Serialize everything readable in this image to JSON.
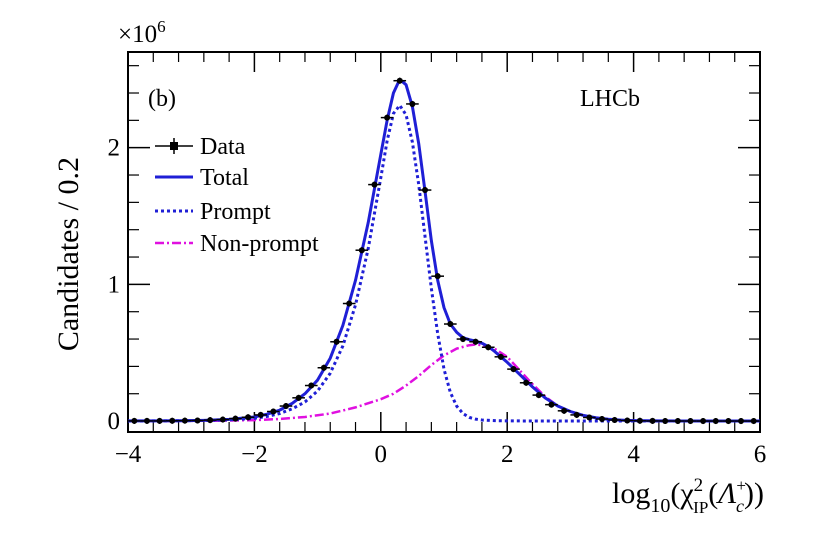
{
  "chart_data": {
    "type": "line",
    "experiment_label": "LHCb",
    "panel_label": "(b)",
    "xlabel": "log₁₀(χ²_IP(Λ_c⁺))",
    "xlabel_parts": {
      "prefix": "log",
      "sub10": "10",
      "paren_open": "(",
      "chi": "χ",
      "sup2": "2",
      "subIP": "IP",
      "paren2": "(",
      "lambda": "Λ",
      "subc": "c",
      "supplus": "+",
      "close": "))"
    },
    "ylabel": "Candidates / 0.2",
    "y_multiplier": "×10",
    "y_multiplier_exp": "6",
    "xlim": [
      -4,
      6
    ],
    "ylim": [
      -0.08,
      2.7
    ],
    "x_ticks": [
      -4,
      -2,
      0,
      2,
      4,
      6
    ],
    "x_tick_labels": [
      "−4",
      "−2",
      "0",
      "2",
      "4",
      "6"
    ],
    "y_ticks": [
      0,
      1,
      2
    ],
    "y_tick_labels": [
      "0",
      "1",
      "2"
    ],
    "bin_width": 0.2,
    "legend": [
      {
        "key": "data",
        "label": "Data"
      },
      {
        "key": "total",
        "label": "Total"
      },
      {
        "key": "prompt",
        "label": "Prompt"
      },
      {
        "key": "nonprompt",
        "label": "Non-prompt"
      }
    ],
    "series": [
      {
        "name": "Data",
        "style": "points",
        "color": "#000000",
        "x": [
          -3.9,
          -3.7,
          -3.5,
          -3.3,
          -3.1,
          -2.9,
          -2.7,
          -2.5,
          -2.3,
          -2.1,
          -1.9,
          -1.7,
          -1.5,
          -1.3,
          -1.1,
          -0.9,
          -0.7,
          -0.5,
          -0.3,
          -0.1,
          0.1,
          0.3,
          0.5,
          0.7,
          0.9,
          1.1,
          1.3,
          1.5,
          1.7,
          1.9,
          2.1,
          2.3,
          2.5,
          2.7,
          2.9,
          3.1,
          3.3,
          3.5,
          3.7,
          3.9,
          4.1,
          4.3,
          4.5,
          4.7,
          4.9,
          5.1,
          5.3,
          5.5,
          5.7,
          5.9
        ],
        "y": [
          0.001,
          0.001,
          0.001,
          0.002,
          0.003,
          0.004,
          0.007,
          0.011,
          0.018,
          0.028,
          0.045,
          0.07,
          0.11,
          0.17,
          0.26,
          0.39,
          0.58,
          0.86,
          1.25,
          1.73,
          2.22,
          2.49,
          2.32,
          1.69,
          1.06,
          0.71,
          0.6,
          0.58,
          0.54,
          0.47,
          0.38,
          0.28,
          0.19,
          0.12,
          0.075,
          0.045,
          0.026,
          0.015,
          0.008,
          0.004,
          0.002,
          0.001,
          0.0006,
          0.0003,
          0.0002,
          0.0001,
          0.0001,
          0.0001,
          0.0001,
          0.0001
        ]
      },
      {
        "name": "Total",
        "style": "solid",
        "color": "#1f1fd6",
        "x": [
          -4.0,
          -3.6,
          -3.2,
          -2.8,
          -2.4,
          -2.0,
          -1.8,
          -1.6,
          -1.4,
          -1.2,
          -1.0,
          -0.8,
          -0.6,
          -0.4,
          -0.2,
          0.0,
          0.1,
          0.2,
          0.3,
          0.4,
          0.5,
          0.6,
          0.7,
          0.8,
          0.9,
          1.0,
          1.1,
          1.2,
          1.3,
          1.4,
          1.5,
          1.6,
          1.7,
          1.8,
          1.9,
          2.0,
          2.2,
          2.4,
          2.6,
          2.8,
          3.0,
          3.2,
          3.4,
          3.6,
          3.8,
          4.0,
          4.4,
          4.8,
          5.2,
          5.6,
          6.0
        ],
        "y": [
          0.001,
          0.001,
          0.002,
          0.005,
          0.012,
          0.03,
          0.05,
          0.08,
          0.13,
          0.2,
          0.3,
          0.46,
          0.7,
          1.03,
          1.45,
          1.95,
          2.2,
          2.4,
          2.5,
          2.46,
          2.3,
          2.03,
          1.68,
          1.32,
          1.03,
          0.83,
          0.71,
          0.65,
          0.61,
          0.595,
          0.585,
          0.57,
          0.545,
          0.51,
          0.47,
          0.43,
          0.34,
          0.25,
          0.17,
          0.11,
          0.07,
          0.042,
          0.024,
          0.013,
          0.007,
          0.003,
          0.001,
          0.0004,
          0.0002,
          0.0001,
          0.0001
        ]
      },
      {
        "name": "Prompt",
        "style": "dotted",
        "color": "#1f1fd6",
        "x": [
          -4.0,
          -3.6,
          -3.2,
          -2.8,
          -2.4,
          -2.0,
          -1.8,
          -1.6,
          -1.4,
          -1.2,
          -1.0,
          -0.8,
          -0.6,
          -0.4,
          -0.2,
          0.0,
          0.1,
          0.2,
          0.3,
          0.4,
          0.5,
          0.6,
          0.7,
          0.8,
          0.9,
          1.0,
          1.1,
          1.2,
          1.3,
          1.4,
          1.5,
          1.6,
          1.8,
          2.0,
          2.2,
          2.6,
          3.0,
          4.0,
          5.0,
          6.0
        ],
        "y": [
          0.0,
          0.001,
          0.002,
          0.004,
          0.009,
          0.02,
          0.034,
          0.055,
          0.09,
          0.14,
          0.22,
          0.35,
          0.55,
          0.85,
          1.26,
          1.78,
          2.05,
          2.25,
          2.31,
          2.24,
          2.04,
          1.73,
          1.35,
          0.97,
          0.64,
          0.38,
          0.21,
          0.11,
          0.055,
          0.027,
          0.014,
          0.008,
          0.003,
          0.0015,
          0.001,
          0.0005,
          0.0002,
          0.0,
          0.0,
          0.0
        ]
      },
      {
        "name": "Non-prompt",
        "style": "dashdot",
        "color": "#e010e0",
        "x": [
          -4.0,
          -3.6,
          -3.2,
          -2.8,
          -2.4,
          -2.0,
          -1.6,
          -1.2,
          -0.8,
          -0.4,
          0.0,
          0.2,
          0.4,
          0.6,
          0.8,
          1.0,
          1.2,
          1.4,
          1.5,
          1.6,
          1.8,
          2.0,
          2.2,
          2.4,
          2.6,
          2.8,
          3.0,
          3.2,
          3.4,
          3.6,
          3.8,
          4.0,
          4.4,
          4.8,
          5.2,
          5.6,
          6.0
        ],
        "y": [
          0.0,
          0.0,
          0.001,
          0.002,
          0.004,
          0.007,
          0.015,
          0.03,
          0.055,
          0.1,
          0.16,
          0.2,
          0.26,
          0.33,
          0.41,
          0.48,
          0.53,
          0.555,
          0.56,
          0.555,
          0.53,
          0.47,
          0.37,
          0.27,
          0.18,
          0.11,
          0.07,
          0.042,
          0.024,
          0.013,
          0.007,
          0.003,
          0.001,
          0.0004,
          0.0002,
          0.0001,
          0.0001
        ]
      }
    ]
  }
}
